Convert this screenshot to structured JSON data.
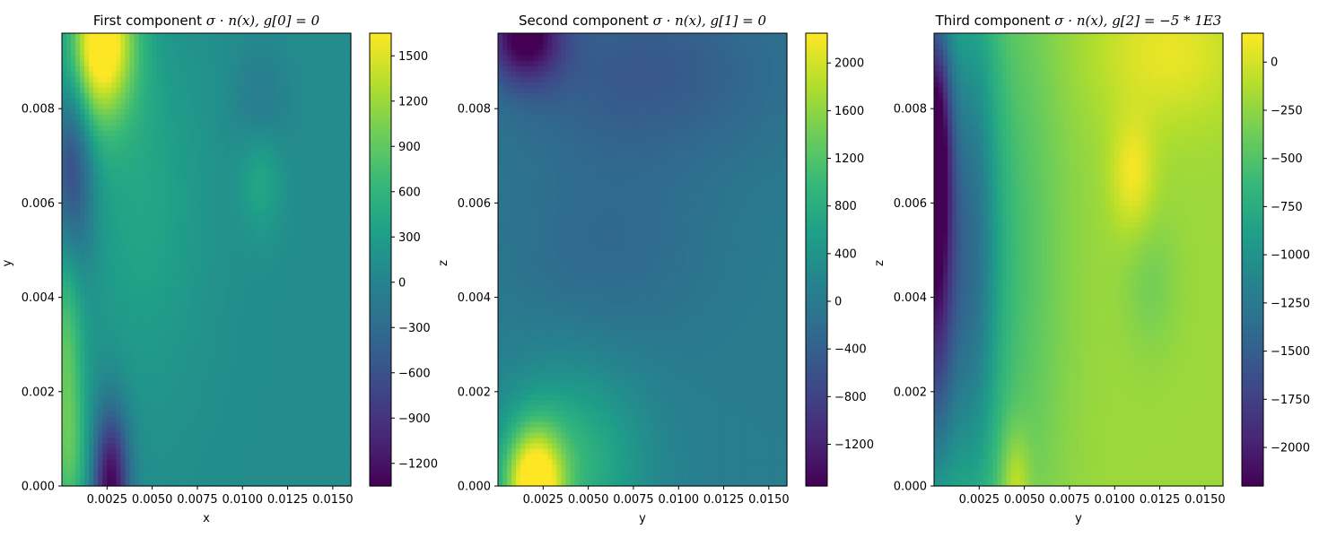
{
  "chart_data": [
    {
      "type": "heatmap",
      "title": "First component σ·n(x), g[0] = 0",
      "title_parts": {
        "prefix": "First component ",
        "math": "σ · n(x), g[0] = 0"
      },
      "xlabel": "x",
      "ylabel": "y",
      "xlim": [
        0.0,
        0.016
      ],
      "ylim": [
        0.0,
        0.0096
      ],
      "xticks": [
        "0.0025",
        "0.0050",
        "0.0075",
        "0.0100",
        "0.0125",
        "0.0150"
      ],
      "xtick_values": [
        0.0025,
        0.005,
        0.0075,
        0.01,
        0.0125,
        0.015
      ],
      "yticks": [
        "0.000",
        "0.002",
        "0.004",
        "0.006",
        "0.008"
      ],
      "ytick_values": [
        0.0,
        0.002,
        0.004,
        0.006,
        0.008
      ],
      "colorbar": {
        "range": [
          -1350,
          1650
        ],
        "ticks": [
          "−1200",
          "−900",
          "−600",
          "−300",
          "0",
          "300",
          "600",
          "900",
          "1200",
          "1500"
        ],
        "tick_values": [
          -1200,
          -900,
          -600,
          -300,
          0,
          300,
          600,
          900,
          1200,
          1500
        ]
      },
      "colormap": "viridis",
      "background_value": 100,
      "features": [
        {
          "x": 0.0022,
          "y": 0.0096,
          "value": 1650,
          "spread": [
            0.0018,
            0.0014
          ]
        },
        {
          "x": 0.0012,
          "y": 0.0084,
          "value": 750,
          "spread": [
            0.0025,
            0.0015
          ]
        },
        {
          "x": 0.0005,
          "y": 0.007,
          "value": -1000,
          "spread": [
            0.0012,
            0.0025
          ]
        },
        {
          "x": 0.0002,
          "y": 0.003,
          "value": 900,
          "spread": [
            0.001,
            0.003
          ]
        },
        {
          "x": 0.0027,
          "y": 0.0,
          "value": -1350,
          "spread": [
            0.001,
            0.0016
          ]
        },
        {
          "x": 0.0045,
          "y": 0.006,
          "value": 400,
          "spread": [
            0.0035,
            0.004
          ]
        },
        {
          "x": 0.011,
          "y": 0.0066,
          "value": 450,
          "spread": [
            0.0012,
            0.0012
          ]
        },
        {
          "x": 0.011,
          "y": 0.008,
          "value": -150,
          "spread": [
            0.0015,
            0.0012
          ]
        },
        {
          "x": 0.0005,
          "y": 0.0005,
          "value": 500,
          "spread": [
            0.0012,
            0.0015
          ]
        }
      ]
    },
    {
      "type": "heatmap",
      "title": "Second component σ·n(x), g[1] = 0",
      "title_parts": {
        "prefix": "Second component ",
        "math": "σ · n(x), g[1] = 0"
      },
      "xlabel": "y",
      "ylabel": "z",
      "xlim": [
        0.0,
        0.016
      ],
      "ylim": [
        0.0,
        0.0096
      ],
      "xticks": [
        "0.0025",
        "0.0050",
        "0.0075",
        "0.0100",
        "0.0125",
        "0.0150"
      ],
      "xtick_values": [
        0.0025,
        0.005,
        0.0075,
        0.01,
        0.0125,
        0.015
      ],
      "yticks": [
        "0.000",
        "0.002",
        "0.004",
        "0.006",
        "0.008"
      ],
      "ytick_values": [
        0.0,
        0.002,
        0.004,
        0.006,
        0.008
      ],
      "colorbar": {
        "range": [
          -1550,
          2250
        ],
        "ticks": [
          "−1200",
          "−800",
          "−400",
          "0",
          "400",
          "800",
          "1200",
          "1600",
          "2000"
        ],
        "tick_values": [
          -1200,
          -800,
          -400,
          0,
          400,
          800,
          1200,
          1600,
          2000
        ]
      },
      "colormap": "viridis",
      "background_value": 50,
      "features": [
        {
          "x": 0.0015,
          "y": 0.0096,
          "value": -1550,
          "spread": [
            0.002,
            0.001
          ]
        },
        {
          "x": 0.008,
          "y": 0.0088,
          "value": -500,
          "spread": [
            0.008,
            0.002
          ]
        },
        {
          "x": 0.002,
          "y": 0.0,
          "value": 2250,
          "spread": [
            0.0016,
            0.0012
          ]
        },
        {
          "x": 0.004,
          "y": 0.0005,
          "value": 900,
          "spread": [
            0.004,
            0.002
          ]
        },
        {
          "x": 0.006,
          "y": 0.005,
          "value": -250,
          "spread": [
            0.006,
            0.002
          ]
        }
      ]
    },
    {
      "type": "heatmap",
      "title": "Third component σ·n(x), g[2] = −5 * 1E3",
      "title_parts": {
        "prefix": "Third component ",
        "math": "σ · n(x), g[2] = −5 * 1E3"
      },
      "xlabel": "y",
      "ylabel": "z",
      "xlim": [
        0.0,
        0.016
      ],
      "ylim": [
        0.0,
        0.0096
      ],
      "xticks": [
        "0.0025",
        "0.0050",
        "0.0075",
        "0.0100",
        "0.0125",
        "0.0150"
      ],
      "xtick_values": [
        0.0025,
        0.005,
        0.0075,
        0.01,
        0.0125,
        0.015
      ],
      "yticks": [
        "0.000",
        "0.002",
        "0.004",
        "0.006",
        "0.008"
      ],
      "ytick_values": [
        0.0,
        0.002,
        0.004,
        0.006,
        0.008
      ],
      "colorbar": {
        "range": [
          -2200,
          150
        ],
        "ticks": [
          "−2000",
          "−1750",
          "−1500",
          "−1250",
          "−1000",
          "−750",
          "−500",
          "−250",
          "0"
        ],
        "tick_values": [
          -2000,
          -1750,
          -1500,
          -1250,
          -1000,
          -750,
          -500,
          -250,
          0
        ]
      },
      "colormap": "viridis",
      "background_value": -200,
      "features": [
        {
          "x": 0.0,
          "y": 0.0075,
          "value": -1900,
          "spread": [
            0.001,
            0.003
          ]
        },
        {
          "x": 0.0,
          "y": 0.0035,
          "value": -1500,
          "spread": [
            0.0012,
            0.004
          ]
        },
        {
          "x": 0.002,
          "y": 0.005,
          "value": -1100,
          "spread": [
            0.0015,
            0.006
          ]
        },
        {
          "x": 0.004,
          "y": 0.005,
          "value": -550,
          "spread": [
            0.003,
            0.007
          ]
        },
        {
          "x": 0.0045,
          "y": 0.0,
          "value": 150,
          "spread": [
            0.0008,
            0.0012
          ]
        },
        {
          "x": 0.011,
          "y": 0.0066,
          "value": 120,
          "spread": [
            0.0012,
            0.0012
          ]
        },
        {
          "x": 0.013,
          "y": 0.0092,
          "value": 80,
          "spread": [
            0.004,
            0.0015
          ]
        },
        {
          "x": 0.012,
          "y": 0.0043,
          "value": -350,
          "spread": [
            0.0015,
            0.0015
          ]
        }
      ]
    }
  ]
}
